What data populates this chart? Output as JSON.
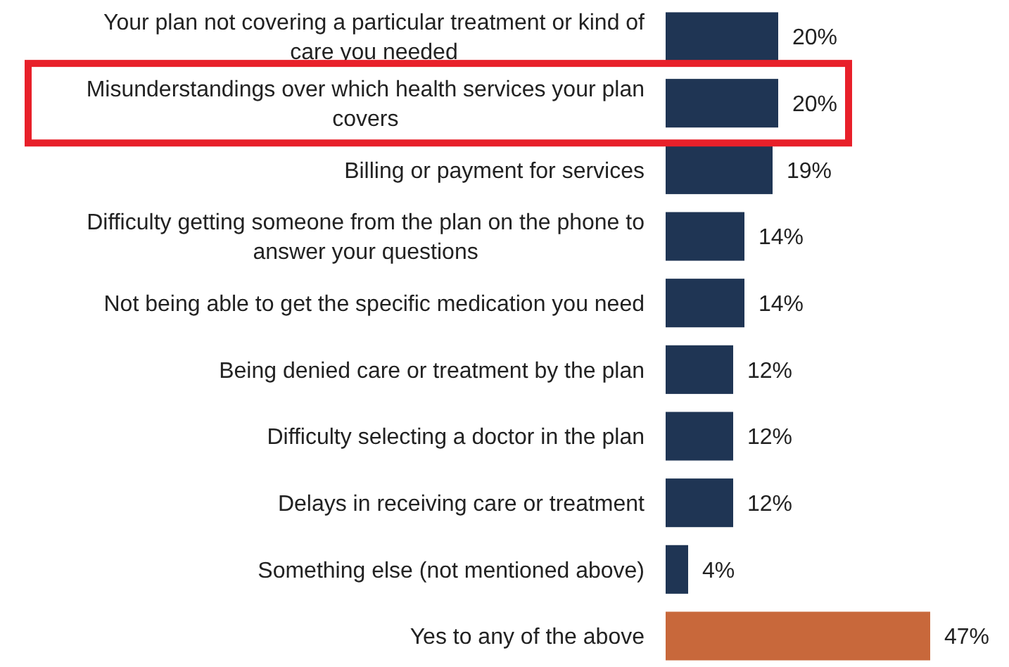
{
  "chart_data": {
    "type": "bar",
    "orientation": "horizontal",
    "categories": [
      "Your plan not covering a particular treatment or kind of care you needed",
      "Misunderstandings over which health services your plan covers",
      "Billing or payment for services",
      "Difficulty getting someone from the plan on the phone to answer your questions",
      "Not being able to get the specific medication you need",
      "Being denied care or treatment by the plan",
      "Difficulty selecting a doctor in the plan",
      "Delays in receiving care or treatment",
      "Something else (not mentioned above)",
      "Yes to any of the above"
    ],
    "values": [
      20,
      20,
      19,
      14,
      14,
      12,
      12,
      12,
      4,
      47
    ],
    "colors": [
      "#1f3554",
      "#1f3554",
      "#1f3554",
      "#1f3554",
      "#1f3554",
      "#1f3554",
      "#1f3554",
      "#1f3554",
      "#1f3554",
      "#c8683b"
    ],
    "value_labels": [
      "20%",
      "20%",
      "19%",
      "14%",
      "14%",
      "12%",
      "12%",
      "12%",
      "4%",
      "47%"
    ]
  }
}
